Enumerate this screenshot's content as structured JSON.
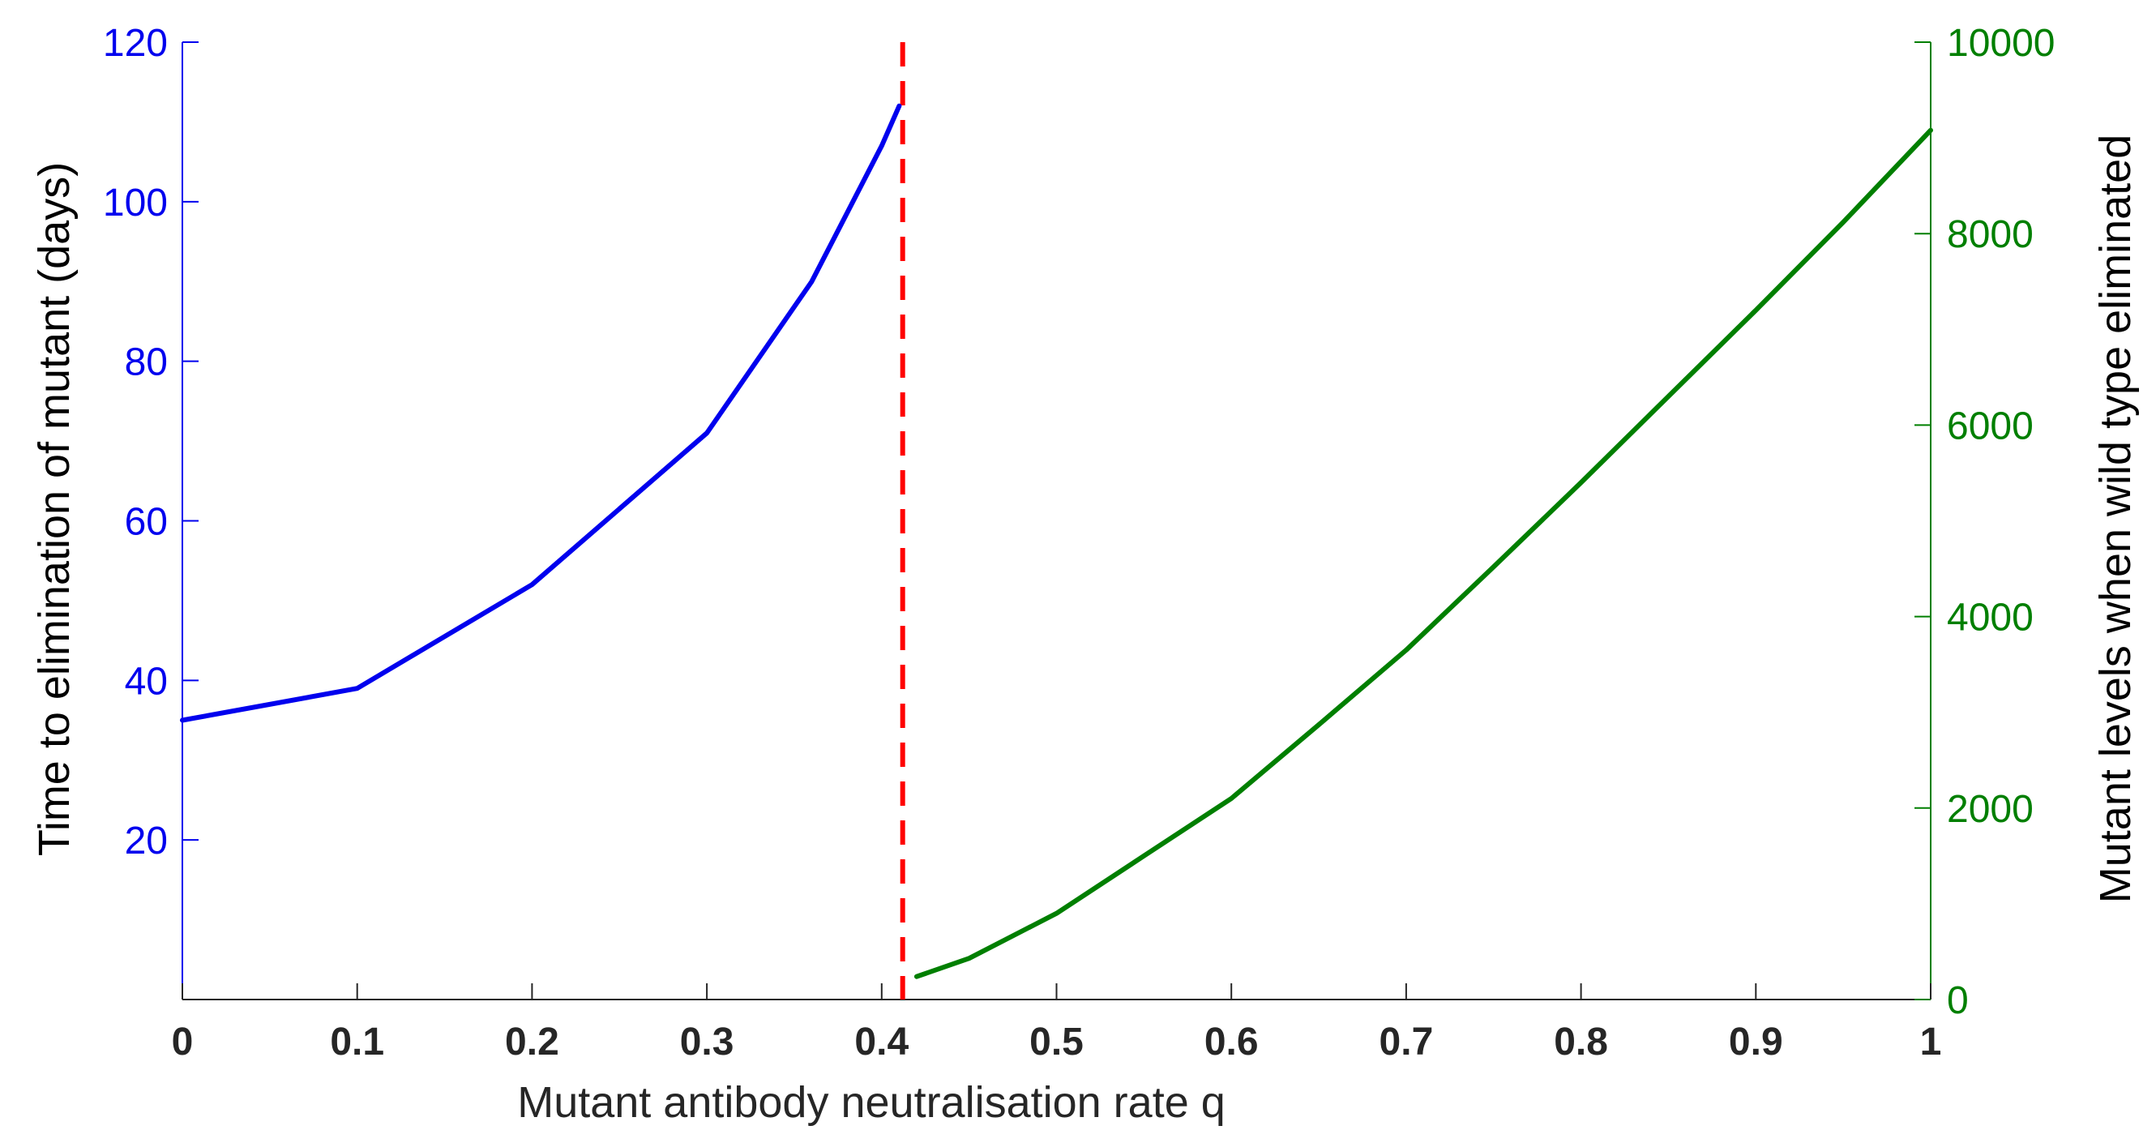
{
  "chart_data": {
    "type": "line",
    "xlabel": "Mutant antibody neutralisation rate q",
    "ylabel_left": "Time to elimination of mutant (days)",
    "ylabel_right": "Mutant levels when wild type eliminated",
    "xlim": [
      0,
      1
    ],
    "ylim_left": [
      0,
      120
    ],
    "ylim_right": [
      0,
      10000
    ],
    "x_ticks": [
      "0",
      "0.1",
      "0.2",
      "0.3",
      "0.4",
      "0.5",
      "0.6",
      "0.7",
      "0.8",
      "0.9",
      "1"
    ],
    "y_left_ticks": [
      "20",
      "40",
      "60",
      "80",
      "100",
      "120"
    ],
    "y_right_ticks": [
      "0",
      "2000",
      "4000",
      "6000",
      "8000",
      "10000"
    ],
    "grid": false,
    "threshold_q": 0.412,
    "colors": {
      "left_axis": "#0000ee",
      "right_axis": "#007f00",
      "threshold": "#ff0000",
      "x_axis": "#262626"
    },
    "series": [
      {
        "axis": "left",
        "x": [
          0,
          0.1,
          0.2,
          0.3,
          0.36,
          0.4,
          0.41
        ],
        "y": [
          35,
          39,
          52,
          71,
          90,
          107,
          112
        ]
      },
      {
        "axis": "right",
        "x": [
          0.42,
          0.45,
          0.5,
          0.55,
          0.6,
          0.65,
          0.7,
          0.75,
          0.8,
          0.85,
          0.9,
          0.95,
          1.0
        ],
        "y": [
          240,
          430,
          900,
          1500,
          2100,
          2870,
          3650,
          4520,
          5400,
          6300,
          7200,
          8120,
          9080
        ]
      }
    ]
  }
}
